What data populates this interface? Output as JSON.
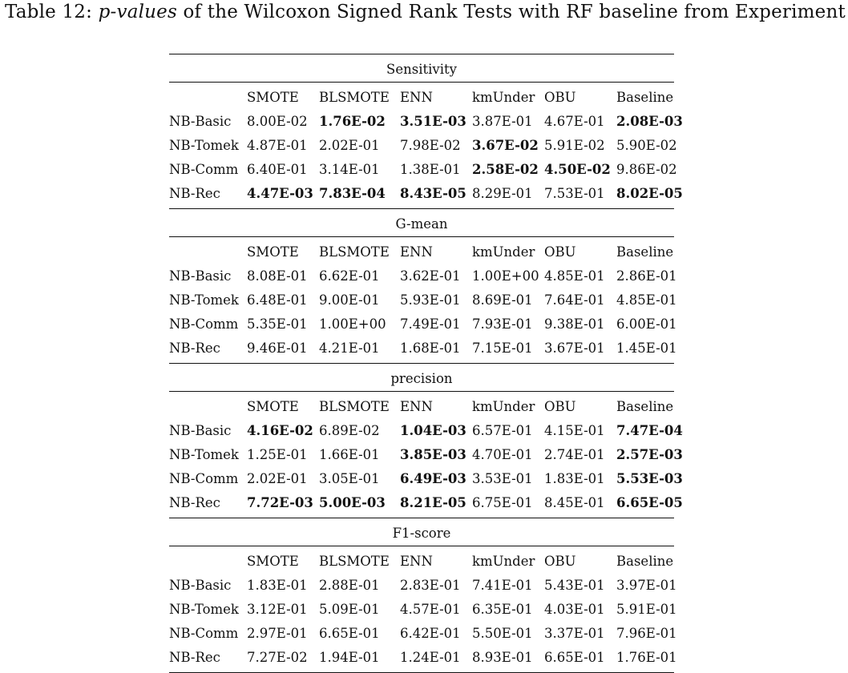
{
  "caption": {
    "prefix": "Table 12: ",
    "italic": "p-values",
    "suffix": " of the Wilcoxon Signed Rank Tests with RF baseline from Experiment II"
  },
  "columns": [
    "SMOTE",
    "BLSMOTE",
    "ENN",
    "kmUnder",
    "OBU",
    "Baseline"
  ],
  "sections": [
    {
      "title": "Sensitivity",
      "rows": [
        {
          "label": "NB-Basic",
          "values": [
            "8.00E-02",
            "1.76E-02",
            "3.51E-03",
            "3.87E-01",
            "4.67E-01",
            "2.08E-03"
          ],
          "bold": [
            false,
            true,
            true,
            false,
            false,
            true
          ]
        },
        {
          "label": "NB-Tomek",
          "values": [
            "4.87E-01",
            "2.02E-01",
            "7.98E-02",
            "3.67E-02",
            "5.91E-02",
            "5.90E-02"
          ],
          "bold": [
            false,
            false,
            false,
            true,
            false,
            false
          ]
        },
        {
          "label": "NB-Comm",
          "values": [
            "6.40E-01",
            "3.14E-01",
            "1.38E-01",
            "2.58E-02",
            "4.50E-02",
            "9.86E-02"
          ],
          "bold": [
            false,
            false,
            false,
            true,
            true,
            false
          ]
        },
        {
          "label": "NB-Rec",
          "values": [
            "4.47E-03",
            "7.83E-04",
            "8.43E-05",
            "8.29E-01",
            "7.53E-01",
            "8.02E-05"
          ],
          "bold": [
            true,
            true,
            true,
            false,
            false,
            true
          ]
        }
      ]
    },
    {
      "title": "G-mean",
      "rows": [
        {
          "label": "NB-Basic",
          "values": [
            "8.08E-01",
            "6.62E-01",
            "3.62E-01",
            "1.00E+00",
            "4.85E-01",
            "2.86E-01"
          ],
          "bold": [
            false,
            false,
            false,
            false,
            false,
            false
          ]
        },
        {
          "label": "NB-Tomek",
          "values": [
            "6.48E-01",
            "9.00E-01",
            "5.93E-01",
            "8.69E-01",
            "7.64E-01",
            "4.85E-01"
          ],
          "bold": [
            false,
            false,
            false,
            false,
            false,
            false
          ]
        },
        {
          "label": "NB-Comm",
          "values": [
            "5.35E-01",
            "1.00E+00",
            "7.49E-01",
            "7.93E-01",
            "9.38E-01",
            "6.00E-01"
          ],
          "bold": [
            false,
            false,
            false,
            false,
            false,
            false
          ]
        },
        {
          "label": "NB-Rec",
          "values": [
            "9.46E-01",
            "4.21E-01",
            "1.68E-01",
            "7.15E-01",
            "3.67E-01",
            "1.45E-01"
          ],
          "bold": [
            false,
            false,
            false,
            false,
            false,
            false
          ]
        }
      ]
    },
    {
      "title": "precision",
      "rows": [
        {
          "label": "NB-Basic",
          "values": [
            "4.16E-02",
            "6.89E-02",
            "1.04E-03",
            "6.57E-01",
            "4.15E-01",
            "7.47E-04"
          ],
          "bold": [
            true,
            false,
            true,
            false,
            false,
            true
          ]
        },
        {
          "label": "NB-Tomek",
          "values": [
            "1.25E-01",
            "1.66E-01",
            "3.85E-03",
            "4.70E-01",
            "2.74E-01",
            "2.57E-03"
          ],
          "bold": [
            false,
            false,
            true,
            false,
            false,
            true
          ]
        },
        {
          "label": "NB-Comm",
          "values": [
            "2.02E-01",
            "3.05E-01",
            "6.49E-03",
            "3.53E-01",
            "1.83E-01",
            "5.53E-03"
          ],
          "bold": [
            false,
            false,
            true,
            false,
            false,
            true
          ]
        },
        {
          "label": "NB-Rec",
          "values": [
            "7.72E-03",
            "5.00E-03",
            "8.21E-05",
            "6.75E-01",
            "8.45E-01",
            "6.65E-05"
          ],
          "bold": [
            true,
            true,
            true,
            false,
            false,
            true
          ]
        }
      ]
    },
    {
      "title": "F1-score",
      "rows": [
        {
          "label": "NB-Basic",
          "values": [
            "1.83E-01",
            "2.88E-01",
            "2.83E-01",
            "7.41E-01",
            "5.43E-01",
            "3.97E-01"
          ],
          "bold": [
            false,
            false,
            false,
            false,
            false,
            false
          ]
        },
        {
          "label": "NB-Tomek",
          "values": [
            "3.12E-01",
            "5.09E-01",
            "4.57E-01",
            "6.35E-01",
            "4.03E-01",
            "5.91E-01"
          ],
          "bold": [
            false,
            false,
            false,
            false,
            false,
            false
          ]
        },
        {
          "label": "NB-Comm",
          "values": [
            "2.97E-01",
            "6.65E-01",
            "6.42E-01",
            "5.50E-01",
            "3.37E-01",
            "7.96E-01"
          ],
          "bold": [
            false,
            false,
            false,
            false,
            false,
            false
          ]
        },
        {
          "label": "NB-Rec",
          "values": [
            "7.27E-02",
            "1.94E-01",
            "1.24E-01",
            "8.93E-01",
            "6.65E-01",
            "1.76E-01"
          ],
          "bold": [
            false,
            false,
            false,
            false,
            false,
            false
          ]
        }
      ]
    }
  ]
}
